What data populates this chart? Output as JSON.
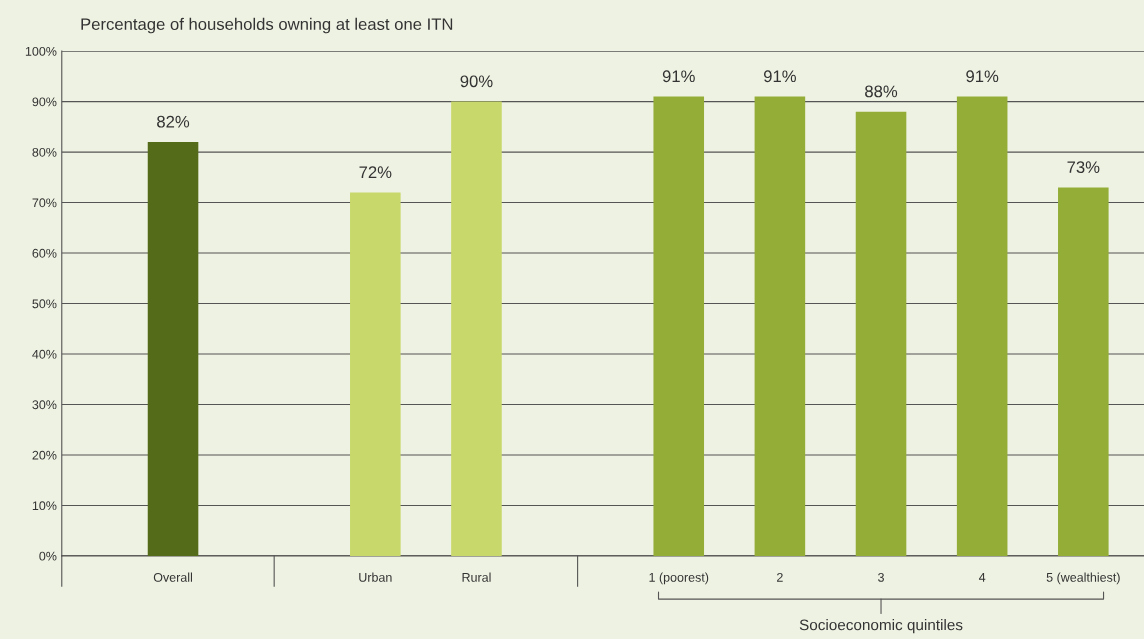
{
  "chart_data": {
    "type": "bar",
    "title": "Percentage of households owning at least one ITN",
    "categories": [
      "Overall",
      null,
      "Urban",
      "Rural",
      null,
      "1 (poorest)",
      "2",
      "3",
      "4",
      "5 (wealthiest)"
    ],
    "values": [
      82,
      null,
      72,
      90,
      null,
      91,
      91,
      88,
      91,
      73
    ],
    "colors": [
      "#546b1a",
      null,
      "#c8d86a",
      "#c8d86a",
      null,
      "#93ad37",
      "#93ad37",
      "#93ad37",
      "#93ad37",
      "#93ad37"
    ],
    "value_labels": [
      "82%",
      null,
      "72%",
      "90%",
      null,
      "91%",
      "91%",
      "88%",
      "91%",
      "73%"
    ],
    "ylim": [
      0,
      100
    ],
    "yticks": [
      {
        "value": 0,
        "label": "0%"
      },
      {
        "value": 10,
        "label": "10%"
      },
      {
        "value": 20,
        "label": "20%"
      },
      {
        "value": 30,
        "label": "30%"
      },
      {
        "value": 40,
        "label": "40%"
      },
      {
        "value": 50,
        "label": "50%"
      },
      {
        "value": 60,
        "label": "60%"
      },
      {
        "value": 70,
        "label": "70%"
      },
      {
        "value": 80,
        "label": "80%"
      },
      {
        "value": 90,
        "label": "90%"
      },
      {
        "value": 100,
        "label": "100%"
      }
    ],
    "grid": "y",
    "annotations": [
      "Socioeconomic quintiles"
    ]
  }
}
